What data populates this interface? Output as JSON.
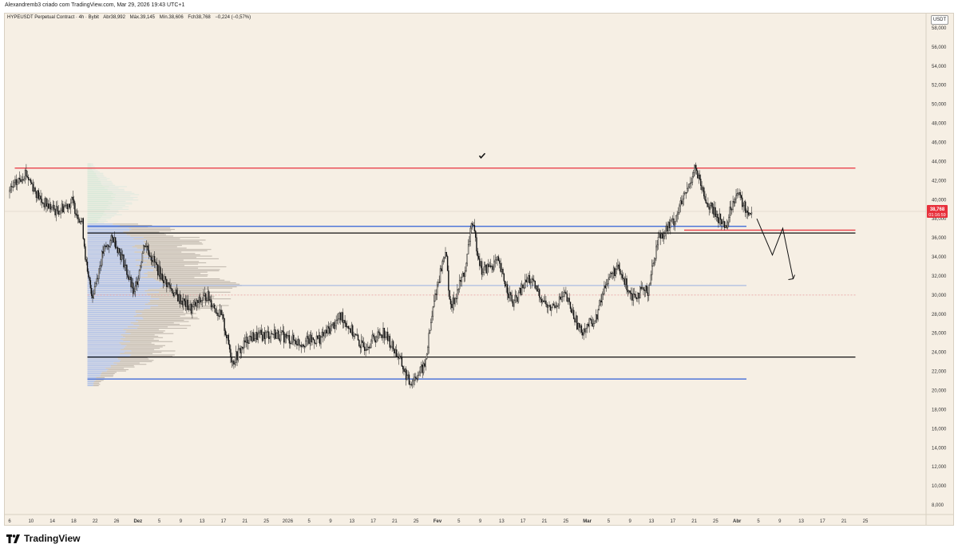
{
  "header": {
    "attribution": "Alexandremb3 criado com TradingView.com, Mar 29, 2026 19:43 UTC+1"
  },
  "symbol": {
    "name": "HYPEUSDT Perpetual Contract · 4h · Bybit",
    "open": "Abr38,992",
    "high": "Máx.39,145",
    "low": "Mín.38,606",
    "close": "Fch38,768",
    "change": "−0,224 (−0,57%)"
  },
  "currency": "USDT",
  "footer": {
    "brand": "TradingView"
  },
  "colors": {
    "background": "#f6efe4",
    "resistance": "#e8313c",
    "support_blue": "#2f5fd6",
    "level_black": "#111111",
    "profile_blue": "#9fb5e8",
    "profile_gray": "#b5ada3",
    "price_badge": "#e8313c"
  },
  "chart_data": {
    "type": "candlestick",
    "y_axis": {
      "range": [
        7000,
        59500
      ],
      "ticks": [
        "58,000",
        "56,000",
        "54,000",
        "52,000",
        "50,000",
        "48,000",
        "46,000",
        "44,000",
        "42,000",
        "40,000",
        "38,000",
        "36,000",
        "34,000",
        "32,000",
        "30,000",
        "28,000",
        "26,000",
        "24,000",
        "22,000",
        "20,000",
        "18,000",
        "16,000",
        "14,000",
        "12,000",
        "10,000",
        "8,000"
      ]
    },
    "x_axis": {
      "ticks": [
        "6",
        "10",
        "14",
        "18",
        "22",
        "26",
        "Dez",
        "5",
        "9",
        "13",
        "17",
        "21",
        "25",
        "2026",
        "5",
        "9",
        "13",
        "17",
        "21",
        "25",
        "Fev",
        "5",
        "9",
        "13",
        "17",
        "21",
        "25",
        "Mar",
        "5",
        "9",
        "13",
        "17",
        "21",
        "25",
        "Abr",
        "5",
        "9",
        "13",
        "17",
        "21",
        "25"
      ]
    },
    "last_price": {
      "value": 38768,
      "label": "38,768",
      "countdown": "01:16:59"
    },
    "price_path": [
      {
        "date": "2025-11-06",
        "price": 40800
      },
      {
        "date": "2025-11-09",
        "price": 42900
      },
      {
        "date": "2025-11-12",
        "price": 39900
      },
      {
        "date": "2025-11-15",
        "price": 38800
      },
      {
        "date": "2025-11-18",
        "price": 39800
      },
      {
        "date": "2025-11-20",
        "price": 37500
      },
      {
        "date": "2025-11-21",
        "price": 32000
      },
      {
        "date": "2025-11-22",
        "price": 30000
      },
      {
        "date": "2025-11-24",
        "price": 34500
      },
      {
        "date": "2025-11-26",
        "price": 36000
      },
      {
        "date": "2025-11-28",
        "price": 33500
      },
      {
        "date": "2025-11-30",
        "price": 30000
      },
      {
        "date": "2025-12-02",
        "price": 35500
      },
      {
        "date": "2025-12-05",
        "price": 32200
      },
      {
        "date": "2025-12-08",
        "price": 30000
      },
      {
        "date": "2025-12-11",
        "price": 28500
      },
      {
        "date": "2025-12-14",
        "price": 30000
      },
      {
        "date": "2025-12-17",
        "price": 27500
      },
      {
        "date": "2025-12-19",
        "price": 23000
      },
      {
        "date": "2025-12-22",
        "price": 25500
      },
      {
        "date": "2025-12-27",
        "price": 26000
      },
      {
        "date": "2026-01-01",
        "price": 25000
      },
      {
        "date": "2026-01-05",
        "price": 25500
      },
      {
        "date": "2026-01-09",
        "price": 27800
      },
      {
        "date": "2026-01-13",
        "price": 24500
      },
      {
        "date": "2026-01-17",
        "price": 26200
      },
      {
        "date": "2026-01-20",
        "price": 23500
      },
      {
        "date": "2026-01-22",
        "price": 20800
      },
      {
        "date": "2026-01-25",
        "price": 22500
      },
      {
        "date": "2026-01-27",
        "price": 30000
      },
      {
        "date": "2026-01-29",
        "price": 34800
      },
      {
        "date": "2026-01-30",
        "price": 28500
      },
      {
        "date": "2026-02-02",
        "price": 33000
      },
      {
        "date": "2026-02-03",
        "price": 37800
      },
      {
        "date": "2026-02-05",
        "price": 32500
      },
      {
        "date": "2026-02-08",
        "price": 33500
      },
      {
        "date": "2026-02-11",
        "price": 29000
      },
      {
        "date": "2026-02-14",
        "price": 31800
      },
      {
        "date": "2026-02-18",
        "price": 28500
      },
      {
        "date": "2026-02-21",
        "price": 30000
      },
      {
        "date": "2026-02-24",
        "price": 26200
      },
      {
        "date": "2026-02-27",
        "price": 27500
      },
      {
        "date": "2026-03-01",
        "price": 31500
      },
      {
        "date": "2026-03-03",
        "price": 32800
      },
      {
        "date": "2026-03-06",
        "price": 30000
      },
      {
        "date": "2026-03-09",
        "price": 30500
      },
      {
        "date": "2026-03-11",
        "price": 36000
      },
      {
        "date": "2026-03-14",
        "price": 37800
      },
      {
        "date": "2026-03-17",
        "price": 41500
      },
      {
        "date": "2026-03-18",
        "price": 43500
      },
      {
        "date": "2026-03-20",
        "price": 40000
      },
      {
        "date": "2026-03-22",
        "price": 38500
      },
      {
        "date": "2026-03-24",
        "price": 37200
      },
      {
        "date": "2026-03-26",
        "price": 40900
      },
      {
        "date": "2026-03-28",
        "price": 38800
      },
      {
        "date": "2026-03-29",
        "price": 38768
      }
    ],
    "horizontal_levels": [
      {
        "price": 43300,
        "color": "#e8313c",
        "from": "2025-11-07",
        "to": "2026-04-18"
      },
      {
        "price": 37200,
        "color": "#2f5fd6",
        "from": "2025-11-21",
        "to": "2026-03-28"
      },
      {
        "price": 36500,
        "color": "#111111",
        "from": "2025-11-21",
        "to": "2026-04-18"
      },
      {
        "price": 36800,
        "color": "#e8313c",
        "from": "2026-03-16",
        "to": "2026-04-18"
      },
      {
        "price": 31000,
        "color": "#8aa6e0",
        "from": "2025-11-21",
        "to": "2026-03-28"
      },
      {
        "price": 30000,
        "color": "#e89a9a",
        "from": "2025-11-21",
        "to": "2026-04-18"
      },
      {
        "price": 23500,
        "color": "#111111",
        "from": "2025-11-21",
        "to": "2026-04-18"
      },
      {
        "price": 21200,
        "color": "#2f5fd6",
        "from": "2025-11-21",
        "to": "2026-03-28"
      }
    ],
    "projection_arrow": [
      {
        "date": "2026-03-30",
        "price": 38000
      },
      {
        "date": "2026-04-02",
        "price": 34200
      },
      {
        "date": "2026-04-04",
        "price": 37000
      },
      {
        "date": "2026-04-06",
        "price": 31700
      }
    ],
    "checkmark": {
      "date": "2026-02-05",
      "price": 44600
    },
    "volume_profile": {
      "price_range": [
        20500,
        43800
      ],
      "point_of_control": 30800
    }
  }
}
